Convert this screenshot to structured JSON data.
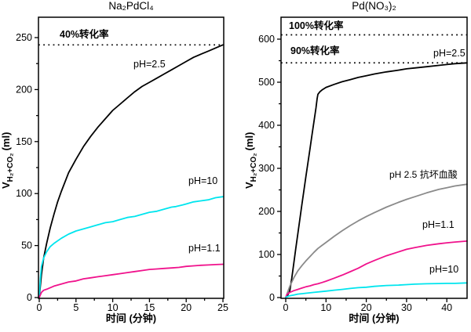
{
  "figure": {
    "background": "#ffffff",
    "ink_color": "#000000"
  },
  "chart_data": [
    {
      "type": "line",
      "title": "Na₂PdCl₄",
      "xlabel": "时间 (分钟)",
      "ylabel": {
        "prefix": "V",
        "sub": "H₂+CO₂",
        "suffix": "(ml)"
      },
      "xlim": [
        0,
        25.2
      ],
      "ylim": [
        0,
        270
      ],
      "x_ticks": [
        0,
        5,
        10,
        15,
        20,
        25
      ],
      "x_minor_step": 2.5,
      "y_ticks": [
        0,
        50,
        100,
        150,
        200,
        250
      ],
      "y_minor_step": 25,
      "grid": false,
      "legend_position": "none (inline curve labels)",
      "ref_lines": [
        {
          "label": "40%转化率",
          "value": 243,
          "style": "dotted",
          "color": "#000000"
        }
      ],
      "series": [
        {
          "name": "pH=2.5",
          "color": "#000000",
          "points": [
            [
              0,
              0
            ],
            [
              0.3,
              22
            ],
            [
              0.6,
              38
            ],
            [
              1,
              52
            ],
            [
              1.5,
              67
            ],
            [
              2,
              80
            ],
            [
              2.5,
              92
            ],
            [
              3,
              102
            ],
            [
              4,
              120
            ],
            [
              5,
              133
            ],
            [
              6,
              145
            ],
            [
              7,
              155
            ],
            [
              8,
              164
            ],
            [
              9,
              172
            ],
            [
              10,
              180
            ],
            [
              11,
              186
            ],
            [
              12,
              192
            ],
            [
              13,
              198
            ],
            [
              14,
              203
            ],
            [
              15,
              207
            ],
            [
              16,
              211
            ],
            [
              17,
              215
            ],
            [
              18,
              219
            ],
            [
              19,
              223
            ],
            [
              20,
              227
            ],
            [
              21,
              231
            ],
            [
              22,
              234
            ],
            [
              23,
              237
            ],
            [
              24,
              240
            ],
            [
              25,
              243
            ]
          ]
        },
        {
          "name": "pH=10",
          "color": "#00E5EE",
          "points": [
            [
              0,
              0
            ],
            [
              0.15,
              18
            ],
            [
              0.3,
              30
            ],
            [
              0.6,
              38
            ],
            [
              1,
              44
            ],
            [
              1.5,
              49
            ],
            [
              2,
              52
            ],
            [
              3,
              57
            ],
            [
              4,
              61
            ],
            [
              5,
              64
            ],
            [
              6,
              66
            ],
            [
              7,
              68
            ],
            [
              8,
              70
            ],
            [
              9,
              72
            ],
            [
              10,
              73
            ],
            [
              11,
              75
            ],
            [
              12,
              77
            ],
            [
              13,
              78
            ],
            [
              14,
              80
            ],
            [
              15,
              82
            ],
            [
              16,
              83
            ],
            [
              17,
              85
            ],
            [
              18,
              87
            ],
            [
              18.6,
              87.5
            ],
            [
              19.5,
              89
            ],
            [
              20,
              90
            ],
            [
              21,
              92
            ],
            [
              22,
              93
            ],
            [
              23,
              94
            ],
            [
              24,
              96
            ],
            [
              25,
              97
            ]
          ]
        },
        {
          "name": "pH=1.1",
          "color": "#F0128C",
          "points": [
            [
              0,
              0
            ],
            [
              0.3,
              5
            ],
            [
              0.6,
              7
            ],
            [
              1,
              8
            ],
            [
              2,
              11
            ],
            [
              3,
              13
            ],
            [
              4,
              15
            ],
            [
              5,
              16
            ],
            [
              6,
              18
            ],
            [
              7,
              19
            ],
            [
              8,
              20
            ],
            [
              9,
              21
            ],
            [
              10,
              22
            ],
            [
              11,
              23
            ],
            [
              12,
              24
            ],
            [
              13,
              25
            ],
            [
              14,
              26
            ],
            [
              15,
              27
            ],
            [
              16,
              27.5
            ],
            [
              17,
              28
            ],
            [
              18,
              28.5
            ],
            [
              19,
              29
            ],
            [
              20,
              30
            ],
            [
              21,
              30.5
            ],
            [
              22,
              31
            ],
            [
              23,
              31.3
            ],
            [
              24,
              31.7
            ],
            [
              25,
              32
            ]
          ]
        }
      ]
    },
    {
      "type": "line",
      "title": "Pd(NO₃)₂",
      "xlabel": "时间 (分钟)",
      "ylabel": {
        "prefix": "V",
        "sub": "H₂+CO₂",
        "suffix": "(ml)"
      },
      "xlim": [
        0,
        45
      ],
      "ylim": [
        0,
        650
      ],
      "x_ticks": [
        0,
        10,
        20,
        30,
        40
      ],
      "x_minor_step": 5,
      "y_ticks": [
        0,
        100,
        200,
        300,
        400,
        500,
        600
      ],
      "y_minor_step": 50,
      "grid": false,
      "legend_position": "none (inline curve labels)",
      "ref_lines": [
        {
          "label": "100%转化率",
          "value": 610,
          "style": "dotted",
          "color": "#000000"
        },
        {
          "label": "90%转化率",
          "value": 545,
          "style": "dotted",
          "color": "#000000"
        }
      ],
      "series": [
        {
          "name": "pH=2.5",
          "color": "#000000",
          "points": [
            [
              0,
              0
            ],
            [
              0.5,
              6
            ],
            [
              1,
              15
            ],
            [
              1.5,
              45
            ],
            [
              2,
              80
            ],
            [
              2.5,
              114
            ],
            [
              3,
              148
            ],
            [
              3.5,
              182
            ],
            [
              4,
              215
            ],
            [
              4.5,
              248
            ],
            [
              5,
              280
            ],
            [
              5.5,
              312
            ],
            [
              6,
              344
            ],
            [
              6.5,
              376
            ],
            [
              7,
              408
            ],
            [
              7.5,
              440
            ],
            [
              7.8,
              462
            ],
            [
              8,
              472
            ],
            [
              8.5,
              478
            ],
            [
              9,
              482
            ],
            [
              10,
              488
            ],
            [
              12,
              495
            ],
            [
              14,
              501
            ],
            [
              16,
              506
            ],
            [
              18,
              511
            ],
            [
              20,
              515
            ],
            [
              22,
              519
            ],
            [
              25,
              524
            ],
            [
              28,
              528
            ],
            [
              30,
              531
            ],
            [
              32,
              533
            ],
            [
              35,
              536
            ],
            [
              38,
              539
            ],
            [
              40,
              541
            ],
            [
              42,
              543
            ],
            [
              45,
              545
            ]
          ]
        },
        {
          "name": "pH 2.5 抗坏血酸",
          "color": "#8A8A8A",
          "points": [
            [
              0,
              0
            ],
            [
              0.3,
              8
            ],
            [
              0.6,
              16
            ],
            [
              1,
              26
            ],
            [
              1.5,
              36
            ],
            [
              2,
              46
            ],
            [
              3,
              62
            ],
            [
              4,
              74
            ],
            [
              5,
              85
            ],
            [
              6,
              95
            ],
            [
              7,
              105
            ],
            [
              8,
              114
            ],
            [
              9,
              121
            ],
            [
              10,
              128
            ],
            [
              12,
              142
            ],
            [
              14,
              155
            ],
            [
              16,
              167
            ],
            [
              18,
              178
            ],
            [
              20,
              188
            ],
            [
              22,
              197
            ],
            [
              25,
              210
            ],
            [
              28,
              221
            ],
            [
              30,
              228
            ],
            [
              32,
              234
            ],
            [
              35,
              243
            ],
            [
              38,
              251
            ],
            [
              40,
              255
            ],
            [
              42,
              259
            ],
            [
              45,
              263
            ]
          ]
        },
        {
          "name": "pH=1.1",
          "color": "#F0128C",
          "points": [
            [
              0,
              0
            ],
            [
              0.3,
              7
            ],
            [
              1,
              12
            ],
            [
              2,
              16
            ],
            [
              3,
              19
            ],
            [
              4,
              22
            ],
            [
              5,
              25
            ],
            [
              6,
              27
            ],
            [
              7,
              30
            ],
            [
              8,
              32
            ],
            [
              9,
              35
            ],
            [
              10,
              38
            ],
            [
              12,
              45
            ],
            [
              14,
              52
            ],
            [
              16,
              60
            ],
            [
              18,
              68
            ],
            [
              20,
              78
            ],
            [
              22,
              86
            ],
            [
              25,
              97
            ],
            [
              28,
              106
            ],
            [
              30,
              112
            ],
            [
              32,
              116
            ],
            [
              35,
              121
            ],
            [
              38,
              125
            ],
            [
              40,
              127
            ],
            [
              42,
              129
            ],
            [
              45,
              131
            ]
          ]
        },
        {
          "name": "pH=10",
          "color": "#00E5EE",
          "points": [
            [
              0,
              0
            ],
            [
              0.3,
              2
            ],
            [
              1,
              4
            ],
            [
              2,
              6
            ],
            [
              3,
              8
            ],
            [
              4,
              9
            ],
            [
              5,
              10
            ],
            [
              7,
              12
            ],
            [
              9,
              14
            ],
            [
              10,
              15
            ],
            [
              12,
              17
            ],
            [
              14,
              19
            ],
            [
              16,
              21
            ],
            [
              18,
              23
            ],
            [
              20,
              24
            ],
            [
              22,
              26
            ],
            [
              25,
              28
            ],
            [
              28,
              29
            ],
            [
              30,
              30
            ],
            [
              32,
              31
            ],
            [
              35,
              32
            ],
            [
              38,
              32.5
            ],
            [
              40,
              33
            ],
            [
              42,
              33
            ],
            [
              45,
              34
            ]
          ]
        }
      ]
    }
  ]
}
